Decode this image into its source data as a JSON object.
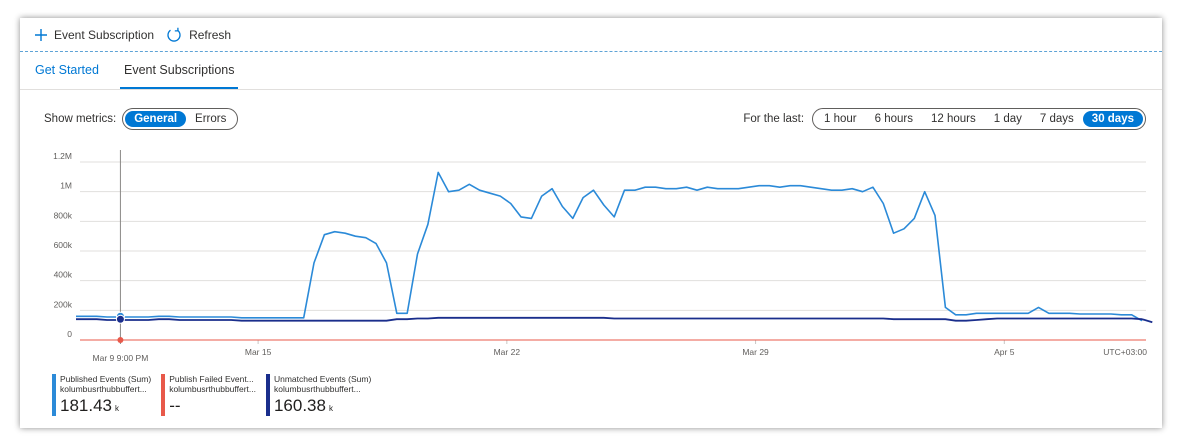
{
  "toolbar": {
    "add_label": "Event Subscription",
    "refresh_label": "Refresh"
  },
  "tabs": [
    {
      "label": "Get Started"
    },
    {
      "label": "Event Subscriptions"
    }
  ],
  "metrics": {
    "label": "Show metrics:",
    "options": [
      "General",
      "Errors"
    ],
    "selected": "General"
  },
  "timerange": {
    "label": "For the last:",
    "options": [
      "1 hour",
      "6 hours",
      "12 hours",
      "1 day",
      "7 days",
      "30 days"
    ],
    "selected": "30 days"
  },
  "chart_data": {
    "type": "line",
    "y_ticks": [
      "0",
      "200k",
      "400k",
      "600k",
      "800k",
      "1M",
      "1.2M"
    ],
    "ylim": [
      0,
      1200000
    ],
    "x_ticks": [
      {
        "label": "Mar 15",
        "day": 5.125
      },
      {
        "label": "Mar 22",
        "day": 12.125
      },
      {
        "label": "Mar 29",
        "day": 19.125
      },
      {
        "label": "Apr 5",
        "day": 26.125
      }
    ],
    "timezone": "UTC+03:00",
    "cursor": {
      "label": "Mar 9 9:00 PM"
    },
    "colors": {
      "published": "#2b8ad8",
      "failed": "#e8594a",
      "unmatched": "#1a2e8c"
    },
    "series": [
      {
        "name": "Published Events (Sum)",
        "values": [
          160000,
          160000,
          160000,
          155000,
          155000,
          155000,
          155000,
          155000,
          160000,
          160000,
          155000,
          155000,
          155000,
          155000,
          155000,
          155000,
          150000,
          150000,
          150000,
          150000,
          150000,
          150000,
          150000,
          520000,
          710000,
          730000,
          720000,
          700000,
          690000,
          650000,
          520000,
          180000,
          180000,
          580000,
          780000,
          1130000,
          1000000,
          1010000,
          1050000,
          1010000,
          990000,
          970000,
          920000,
          830000,
          820000,
          970000,
          1020000,
          900000,
          820000,
          960000,
          1010000,
          910000,
          830000,
          1010000,
          1010000,
          1030000,
          1030000,
          1020000,
          1020000,
          1030000,
          1010000,
          1030000,
          1020000,
          1020000,
          1020000,
          1030000,
          1040000,
          1040000,
          1030000,
          1040000,
          1040000,
          1030000,
          1020000,
          1010000,
          1010000,
          1020000,
          1000000,
          1030000,
          920000,
          720000,
          750000,
          820000,
          1000000,
          840000,
          220000,
          170000,
          170000,
          180000,
          180000,
          180000,
          180000,
          180000,
          180000,
          220000,
          180000,
          180000,
          180000,
          175000,
          175000,
          175000,
          175000,
          170000,
          170000,
          130000
        ]
      },
      {
        "name": "Publish Failed Event...",
        "values": [
          0
        ]
      },
      {
        "name": "Unmatched Events (Sum)",
        "values": [
          140000,
          140000,
          140000,
          135000,
          135000,
          135000,
          135000,
          135000,
          140000,
          140000,
          135000,
          135000,
          135000,
          135000,
          135000,
          135000,
          130000,
          130000,
          130000,
          130000,
          130000,
          130000,
          130000,
          130000,
          130000,
          130000,
          130000,
          130000,
          130000,
          130000,
          130000,
          140000,
          140000,
          145000,
          145000,
          150000,
          150000,
          150000,
          150000,
          150000,
          150000,
          150000,
          150000,
          150000,
          150000,
          150000,
          150000,
          150000,
          150000,
          150000,
          150000,
          150000,
          145000,
          145000,
          145000,
          145000,
          145000,
          145000,
          145000,
          145000,
          145000,
          145000,
          145000,
          145000,
          145000,
          145000,
          145000,
          145000,
          145000,
          145000,
          145000,
          145000,
          145000,
          145000,
          145000,
          145000,
          145000,
          145000,
          145000,
          140000,
          140000,
          140000,
          140000,
          140000,
          140000,
          130000,
          130000,
          135000,
          140000,
          145000,
          145000,
          145000,
          145000,
          145000,
          145000,
          145000,
          145000,
          145000,
          145000,
          145000,
          145000,
          145000,
          145000,
          140000,
          120000
        ]
      }
    ]
  },
  "legend": [
    {
      "name": "Published Events (Sum)",
      "resource": "kolumbusrthubbuffert...",
      "value": "181.43",
      "unit": "k"
    },
    {
      "name": "Publish Failed Event...",
      "resource": "kolumbusrthubbuffert...",
      "value": "--",
      "unit": ""
    },
    {
      "name": "Unmatched Events (Sum)",
      "resource": "kolumbusrthubbuffert...",
      "value": "160.38",
      "unit": "k"
    }
  ]
}
